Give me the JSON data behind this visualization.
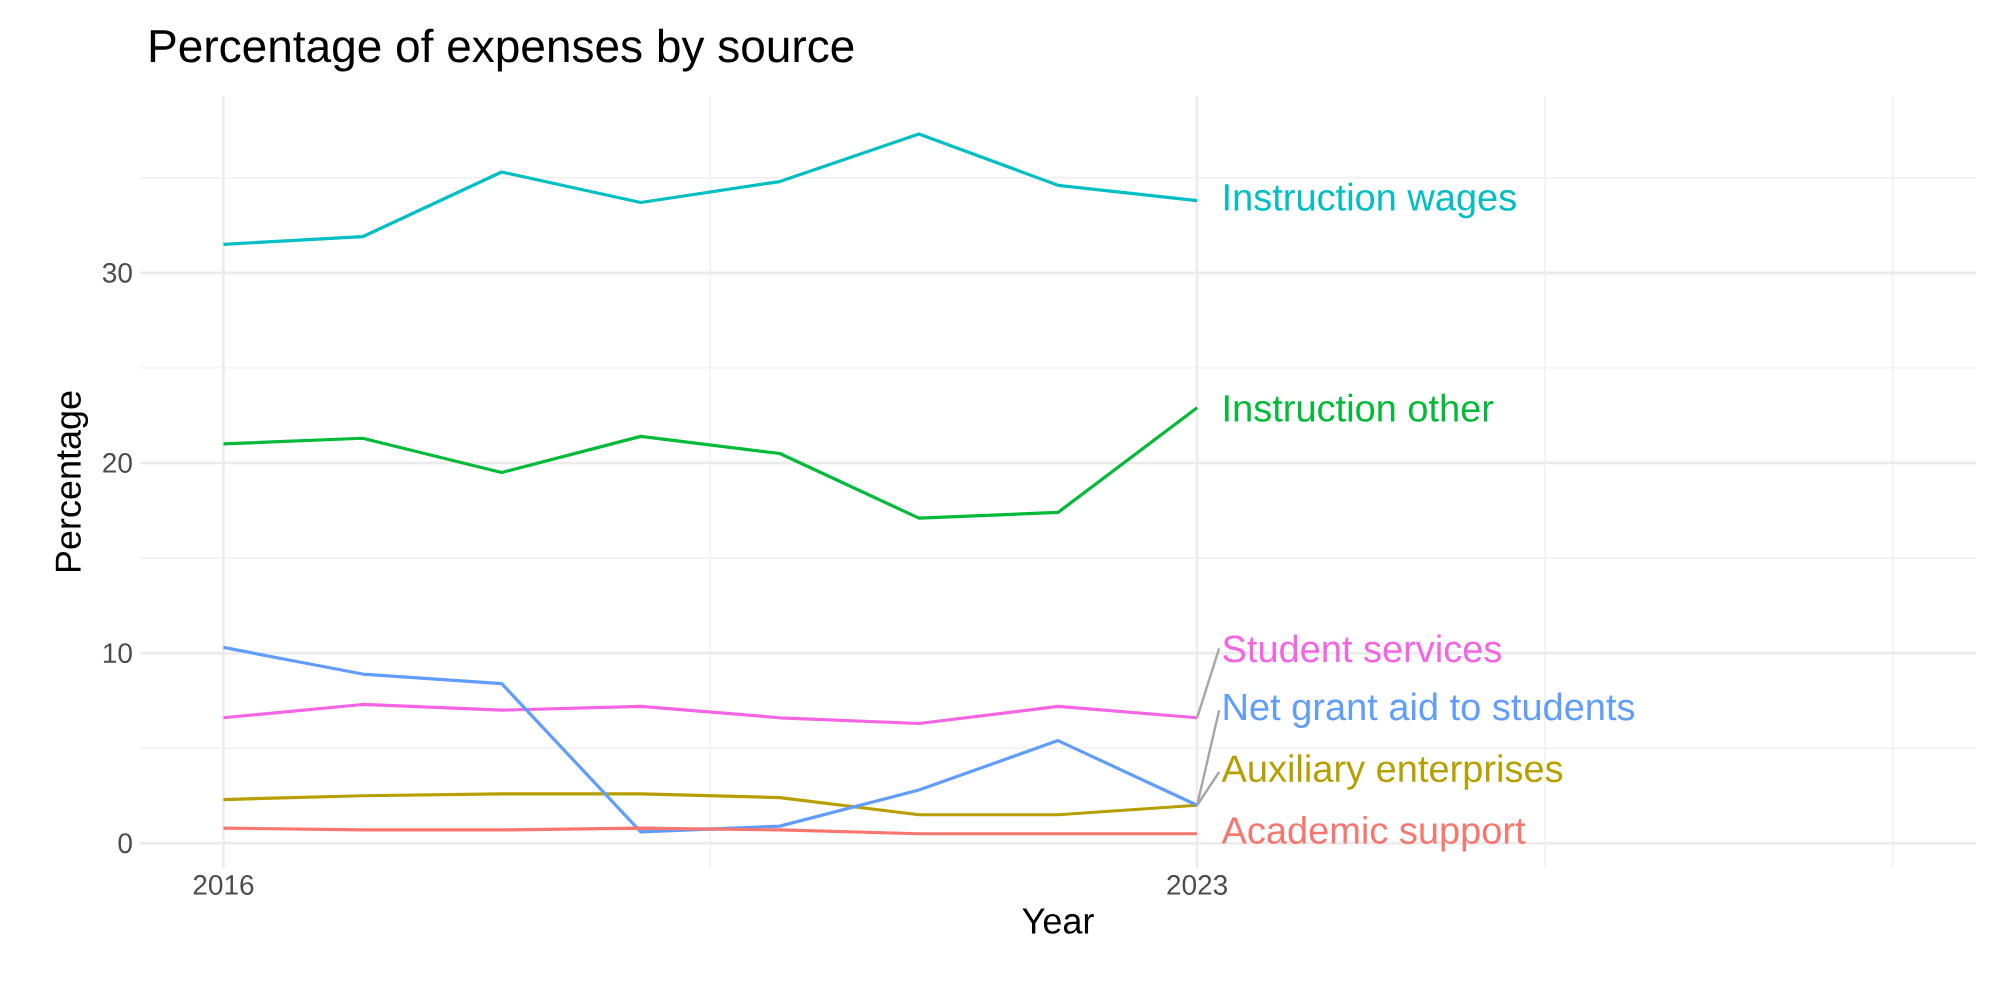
{
  "chart_data": {
    "type": "line",
    "title": "Percentage of expenses by source",
    "xlabel": "Year",
    "ylabel": "Percentage",
    "x": [
      2016,
      2017,
      2018,
      2019,
      2020,
      2021,
      2022,
      2023
    ],
    "series": [
      {
        "name": "Instruction wages",
        "color": "#00bfc4",
        "values": [
          31.5,
          31.9,
          35.3,
          33.7,
          34.8,
          37.3,
          34.6,
          33.8
        ]
      },
      {
        "name": "Instruction other",
        "color": "#00ba38",
        "values": [
          21.0,
          21.3,
          19.5,
          21.4,
          20.5,
          17.1,
          17.4,
          22.9
        ]
      },
      {
        "name": "Student services",
        "color": "#f564e3",
        "values": [
          6.6,
          7.3,
          7.0,
          7.2,
          6.6,
          6.3,
          7.2,
          6.6
        ]
      },
      {
        "name": "Auxiliary enterprises",
        "color": "#b79f00",
        "values": [
          2.3,
          2.5,
          2.6,
          2.6,
          2.4,
          1.5,
          1.5,
          2.0
        ]
      },
      {
        "name": "Net grant aid to students",
        "color": "#619cff",
        "values": [
          10.3,
          8.9,
          8.4,
          0.6,
          0.9,
          2.8,
          5.4,
          2.0
        ]
      },
      {
        "name": "Academic support",
        "color": "#f8766d",
        "values": [
          0.8,
          0.7,
          0.7,
          0.8,
          0.7,
          0.5,
          0.5,
          0.5
        ]
      }
    ],
    "xlim": [
      2015.4,
      2028.6
    ],
    "ylim": [
      -1.3,
      39.3
    ],
    "xticks": [
      2016,
      {
        "value": 2019.5,
        "label": null
      },
      2023,
      {
        "value": 2025.5,
        "label": null
      },
      {
        "value": 2028,
        "label": null
      }
    ],
    "yticks": [
      0,
      {
        "value": 5,
        "label": null
      },
      10,
      {
        "value": 15,
        "label": null
      },
      20,
      {
        "value": 25,
        "label": null
      },
      30,
      {
        "value": 35,
        "label": null
      }
    ],
    "grid": true,
    "legend": false,
    "marker": "none",
    "line_style": "solid"
  }
}
